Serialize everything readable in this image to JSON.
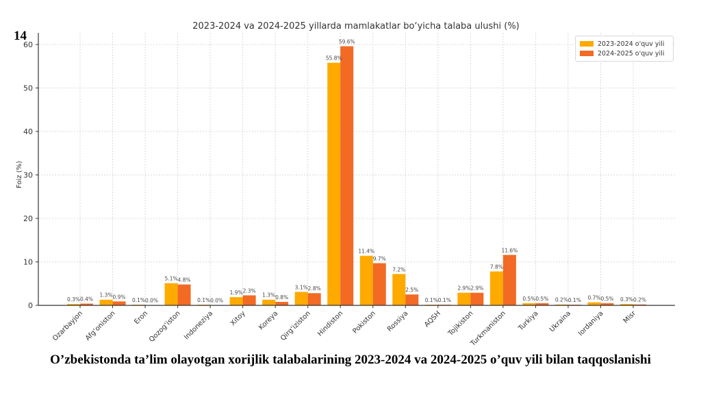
{
  "slide_number": "14",
  "caption": "O’zbekistonda ta’lim olayotgan xorijlik talabalarining 2023-2024 va 2024-2025 o’quv yili bilan taqqoslanishi",
  "colors": {
    "series1": "#FFAA00",
    "series2": "#F26A24",
    "grid": "#d0d0d0",
    "axis": "#333333",
    "text": "#333333"
  },
  "chart_data": {
    "type": "bar",
    "title": "2023-2024 va 2024-2025 yillarda mamlakatlar bo‘yicha talaba ulushi (%)",
    "xlabel": "",
    "ylabel": "Foiz (%)",
    "ylim": [
      0,
      62.5
    ],
    "yticks": [
      0,
      10,
      20,
      30,
      40,
      50,
      60
    ],
    "grid": true,
    "legend_position": "top-right",
    "categories": [
      "Ozarbayjon",
      "Afg‘oniston",
      "Eron",
      "Qozog‘iston",
      "Indoneziya",
      "Xitoy",
      "Koreya",
      "Qirg‘iziston",
      "Hindiston",
      "Pokiston",
      "Rossiya",
      "AQSH",
      "Tojikiston",
      "Turkmaniston",
      "Turkiya",
      "Ukraina",
      "Iordaniya",
      "Misr"
    ],
    "series": [
      {
        "name": "2023-2024 o'quv yili",
        "values": [
          0.3,
          1.3,
          0.1,
          5.1,
          0.1,
          1.9,
          1.3,
          3.1,
          55.8,
          11.4,
          7.2,
          0.1,
          2.9,
          7.8,
          0.5,
          0.2,
          0.7,
          0.3
        ]
      },
      {
        "name": "2024-2025 o'quv yili",
        "values": [
          0.4,
          0.9,
          0.0,
          4.8,
          0.0,
          2.3,
          0.8,
          2.8,
          59.6,
          9.7,
          2.5,
          0.1,
          2.9,
          11.6,
          0.5,
          0.1,
          0.5,
          0.2
        ]
      }
    ]
  }
}
